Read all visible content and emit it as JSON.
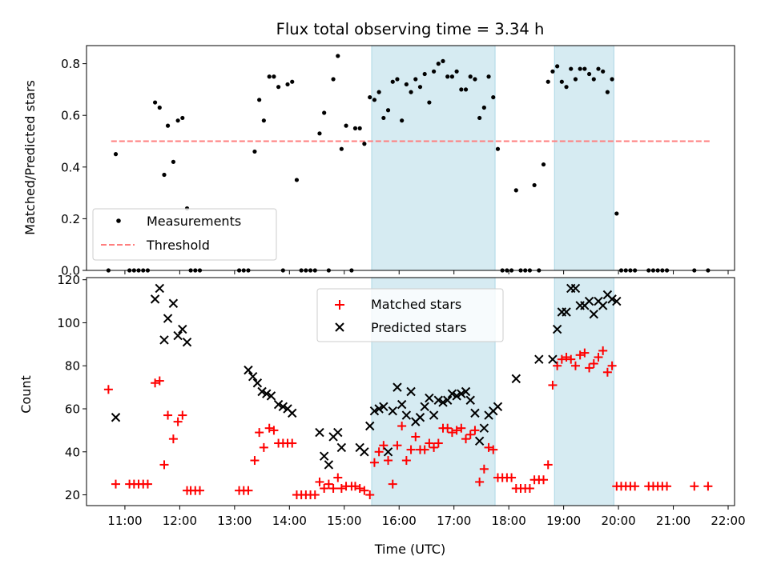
{
  "chart_data": [
    {
      "type": "scatter",
      "title": "Flux total observing time = 3.34 h",
      "xlabel": "",
      "ylabel": "Matched/Predicted stars",
      "ylim": [
        0,
        0.87
      ],
      "yticks": [
        0.0,
        0.2,
        0.4,
        0.6,
        0.8
      ],
      "ytick_labels": [
        "0.0",
        "0.2",
        "0.4",
        "0.6",
        "0.8"
      ],
      "legend": {
        "placement": "lower-left",
        "entries": [
          "Measurements",
          "Threshold"
        ]
      },
      "threshold": {
        "name": "Threshold",
        "value": 0.5,
        "x_range": [
          "10:45",
          "21:40"
        ],
        "color": "#ff7f7f",
        "style": "dashed"
      },
      "shaded_intervals": [
        {
          "start": "15:30",
          "end": "17:45"
        },
        {
          "start": "18:50",
          "end": "19:55"
        }
      ],
      "series": [
        {
          "name": "Measurements",
          "marker": "dot",
          "color": "#000000",
          "x": [
            "10:42",
            "10:50",
            "11:05",
            "11:10",
            "11:15",
            "11:20",
            "11:25",
            "11:33",
            "11:38",
            "11:43",
            "11:47",
            "11:53",
            "11:58",
            "12:03",
            "12:08",
            "12:12",
            "12:17",
            "12:22",
            "13:05",
            "13:10",
            "13:15",
            "13:22",
            "13:27",
            "13:32",
            "13:38",
            "13:43",
            "13:48",
            "13:53",
            "13:58",
            "14:03",
            "14:08",
            "14:13",
            "14:18",
            "14:23",
            "14:28",
            "14:33",
            "14:38",
            "14:43",
            "14:48",
            "14:53",
            "14:57",
            "15:02",
            "15:08",
            "15:12",
            "15:17",
            "15:22",
            "15:28",
            "15:33",
            "15:38",
            "15:43",
            "15:48",
            "15:53",
            "15:58",
            "16:03",
            "16:08",
            "16:13",
            "16:18",
            "16:23",
            "16:28",
            "16:33",
            "16:38",
            "16:43",
            "16:48",
            "16:53",
            "16:58",
            "17:03",
            "17:08",
            "17:13",
            "17:18",
            "17:23",
            "17:28",
            "17:33",
            "17:38",
            "17:43",
            "17:48",
            "17:53",
            "17:58",
            "18:03",
            "18:08",
            "18:13",
            "18:18",
            "18:23",
            "18:28",
            "18:33",
            "18:38",
            "18:43",
            "18:48",
            "18:53",
            "18:58",
            "19:03",
            "19:08",
            "19:13",
            "19:18",
            "19:23",
            "19:28",
            "19:33",
            "19:38",
            "19:43",
            "19:48",
            "19:53",
            "19:58",
            "20:03",
            "20:08",
            "20:13",
            "20:18",
            "20:33",
            "20:38",
            "20:43",
            "20:48",
            "20:53",
            "21:23",
            "21:38"
          ],
          "y": [
            0.0,
            0.45,
            0.0,
            0.0,
            0.0,
            0.0,
            0.0,
            0.65,
            0.63,
            0.37,
            0.56,
            0.42,
            0.58,
            0.59,
            0.24,
            0.0,
            0.0,
            0.0,
            0.0,
            0.0,
            0.0,
            0.46,
            0.66,
            0.58,
            0.75,
            0.75,
            0.71,
            0.0,
            0.72,
            0.73,
            0.35,
            0.0,
            0.0,
            0.0,
            0.0,
            0.53,
            0.61,
            0.0,
            0.74,
            0.83,
            0.47,
            0.56,
            0.0,
            0.55,
            0.55,
            0.49,
            0.67,
            0.66,
            0.69,
            0.59,
            0.62,
            0.73,
            0.74,
            0.58,
            0.72,
            0.69,
            0.74,
            0.71,
            0.76,
            0.65,
            0.77,
            0.8,
            0.81,
            0.75,
            0.75,
            0.77,
            0.7,
            0.7,
            0.75,
            0.74,
            0.59,
            0.63,
            0.75,
            0.67,
            0.47,
            0.0,
            0.0,
            0.0,
            0.31,
            0.0,
            0.0,
            0.0,
            0.33,
            0.0,
            0.41,
            0.73,
            0.77,
            0.79,
            0.73,
            0.71,
            0.78,
            0.74,
            0.78,
            0.78,
            0.76,
            0.74,
            0.78,
            0.77,
            0.69,
            0.74,
            0.22,
            0.0,
            0.0,
            0.0,
            0.0,
            0.0,
            0.0,
            0.0,
            0.0,
            0.0,
            0.0,
            0.0
          ]
        }
      ]
    },
    {
      "type": "scatter",
      "title": "",
      "xlabel": "Time (UTC)",
      "ylabel": "Count",
      "ylim": [
        15,
        121
      ],
      "yticks": [
        20,
        40,
        60,
        80,
        100,
        120
      ],
      "ytick_labels": [
        "20",
        "40",
        "60",
        "80",
        "100",
        "120"
      ],
      "xlim": [
        "10:18",
        "22:07"
      ],
      "xticks": [
        "11:00",
        "12:00",
        "13:00",
        "14:00",
        "15:00",
        "16:00",
        "17:00",
        "18:00",
        "19:00",
        "20:00",
        "21:00",
        "22:00"
      ],
      "legend": {
        "placement": "upper-center",
        "entries": [
          "Matched stars",
          "Predicted stars"
        ]
      },
      "shaded_intervals": [
        {
          "start": "15:30",
          "end": "17:45"
        },
        {
          "start": "18:50",
          "end": "19:55"
        }
      ],
      "series": [
        {
          "name": "Matched stars",
          "marker": "plus",
          "color": "#ff0000",
          "x": [
            "10:42",
            "10:50",
            "11:05",
            "11:10",
            "11:15",
            "11:20",
            "11:25",
            "11:33",
            "11:38",
            "11:43",
            "11:47",
            "11:53",
            "11:58",
            "12:03",
            "12:08",
            "12:12",
            "12:17",
            "12:22",
            "13:05",
            "13:10",
            "13:15",
            "13:22",
            "13:27",
            "13:32",
            "13:38",
            "13:43",
            "13:48",
            "13:53",
            "13:58",
            "14:03",
            "14:08",
            "14:13",
            "14:18",
            "14:23",
            "14:28",
            "14:33",
            "14:38",
            "14:43",
            "14:48",
            "14:53",
            "14:57",
            "15:02",
            "15:08",
            "15:12",
            "15:17",
            "15:22",
            "15:28",
            "15:33",
            "15:38",
            "15:43",
            "15:48",
            "15:53",
            "15:58",
            "16:03",
            "16:08",
            "16:13",
            "16:18",
            "16:23",
            "16:28",
            "16:33",
            "16:38",
            "16:43",
            "16:48",
            "16:53",
            "16:58",
            "17:03",
            "17:08",
            "17:13",
            "17:18",
            "17:23",
            "17:28",
            "17:33",
            "17:38",
            "17:43",
            "17:48",
            "17:53",
            "17:58",
            "18:03",
            "18:08",
            "18:13",
            "18:18",
            "18:23",
            "18:28",
            "18:33",
            "18:38",
            "18:43",
            "18:48",
            "18:53",
            "18:58",
            "19:03",
            "19:08",
            "19:13",
            "19:18",
            "19:23",
            "19:28",
            "19:33",
            "19:38",
            "19:43",
            "19:48",
            "19:53",
            "19:58",
            "20:03",
            "20:08",
            "20:13",
            "20:18",
            "20:33",
            "20:38",
            "20:43",
            "20:48",
            "20:53",
            "21:23",
            "21:38"
          ],
          "y": [
            69,
            25,
            25,
            25,
            25,
            25,
            25,
            72,
            73,
            34,
            57,
            46,
            54,
            57,
            22,
            22,
            22,
            22,
            22,
            22,
            22,
            36,
            49,
            42,
            51,
            50,
            44,
            44,
            44,
            44,
            20,
            20,
            20,
            20,
            20,
            26,
            23,
            25,
            23,
            28,
            23,
            24,
            24,
            24,
            23,
            22,
            20,
            35,
            40,
            43,
            36,
            25,
            43,
            52,
            36,
            41,
            47,
            41,
            41,
            44,
            42,
            44,
            51,
            51,
            49,
            50,
            51,
            46,
            48,
            50,
            26,
            32,
            42,
            41,
            28,
            28,
            28,
            28,
            23,
            23,
            23,
            23,
            27,
            27,
            27,
            34,
            71,
            80,
            83,
            84,
            83,
            80,
            85,
            86,
            79,
            81,
            84,
            87,
            77,
            80,
            24,
            24,
            24,
            24,
            24,
            24,
            24,
            24,
            24,
            24,
            24,
            24
          ]
        },
        {
          "name": "Predicted stars",
          "marker": "x",
          "color": "#000000",
          "x": [
            "10:50",
            "11:33",
            "11:38",
            "11:43",
            "11:47",
            "11:53",
            "11:58",
            "12:03",
            "12:08",
            "13:15",
            "13:20",
            "13:25",
            "13:30",
            "13:35",
            "13:40",
            "13:48",
            "13:53",
            "13:58",
            "14:03",
            "14:33",
            "14:38",
            "14:43",
            "14:48",
            "14:53",
            "14:57",
            "15:17",
            "15:22",
            "15:28",
            "15:33",
            "15:38",
            "15:43",
            "15:48",
            "15:53",
            "15:58",
            "16:03",
            "16:08",
            "16:13",
            "16:18",
            "16:23",
            "16:28",
            "16:33",
            "16:38",
            "16:43",
            "16:48",
            "16:53",
            "16:58",
            "17:03",
            "17:08",
            "17:13",
            "17:18",
            "17:23",
            "17:28",
            "17:33",
            "17:38",
            "17:43",
            "17:48",
            "18:08",
            "18:33",
            "18:48",
            "18:53",
            "18:58",
            "19:03",
            "19:08",
            "19:13",
            "19:18",
            "19:23",
            "19:28",
            "19:33",
            "19:38",
            "19:43",
            "19:48",
            "19:53",
            "19:58"
          ],
          "y": [
            56,
            111,
            116,
            92,
            102,
            109,
            94,
            97,
            91,
            78,
            75,
            72,
            68,
            67,
            66,
            62,
            61,
            60,
            58,
            49,
            38,
            34,
            47,
            49,
            42,
            42,
            40,
            52,
            59,
            60,
            61,
            40,
            59,
            70,
            62,
            57,
            68,
            54,
            56,
            61,
            65,
            57,
            64,
            63,
            64,
            67,
            66,
            67,
            68,
            64,
            58,
            45,
            51,
            57,
            59,
            61,
            74,
            83,
            83,
            97,
            105,
            105,
            116,
            116,
            108,
            108,
            110,
            104,
            110,
            108,
            113,
            111,
            110
          ]
        }
      ]
    }
  ]
}
